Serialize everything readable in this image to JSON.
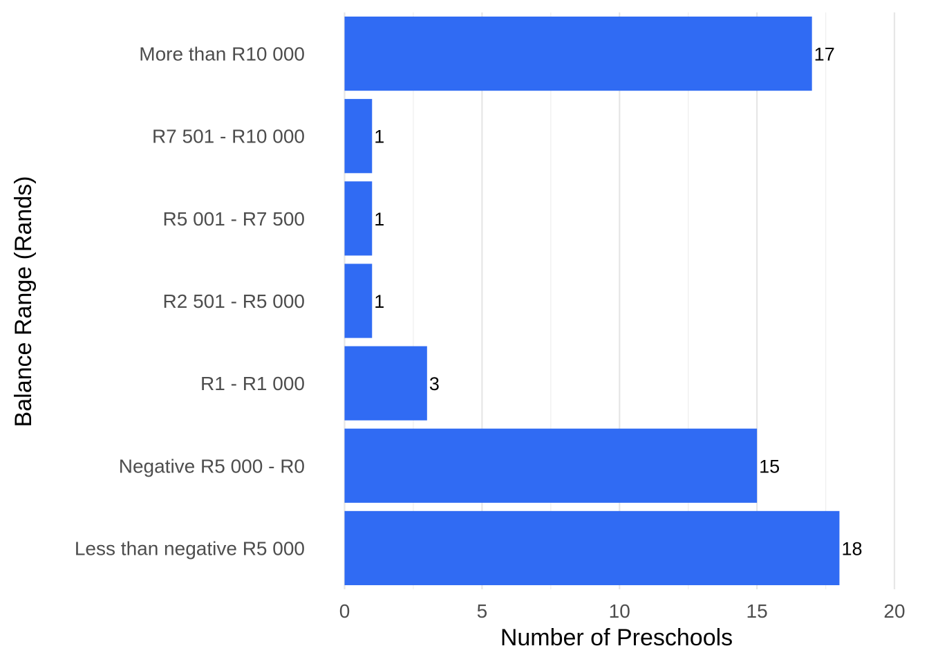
{
  "chart_data": {
    "type": "bar",
    "orientation": "horizontal",
    "title": "",
    "xlabel": "Number of Preschools",
    "ylabel": "Balance Range (Rands)",
    "categories": [
      "Less than negative R5 000",
      "Negative R5 000 - R0",
      "R1 - R1 000",
      "R2 501 - R5 000",
      "R5 001 - R7 500",
      "R7 501 - R10 000",
      "More than R10 000"
    ],
    "values": [
      18,
      15,
      3,
      1,
      1,
      1,
      17
    ],
    "xlim": [
      0,
      20
    ],
    "xticks": [
      "0",
      "5",
      "10",
      "15",
      "20"
    ],
    "grid": true,
    "legend": "none",
    "bar_color": "#306BF3"
  }
}
